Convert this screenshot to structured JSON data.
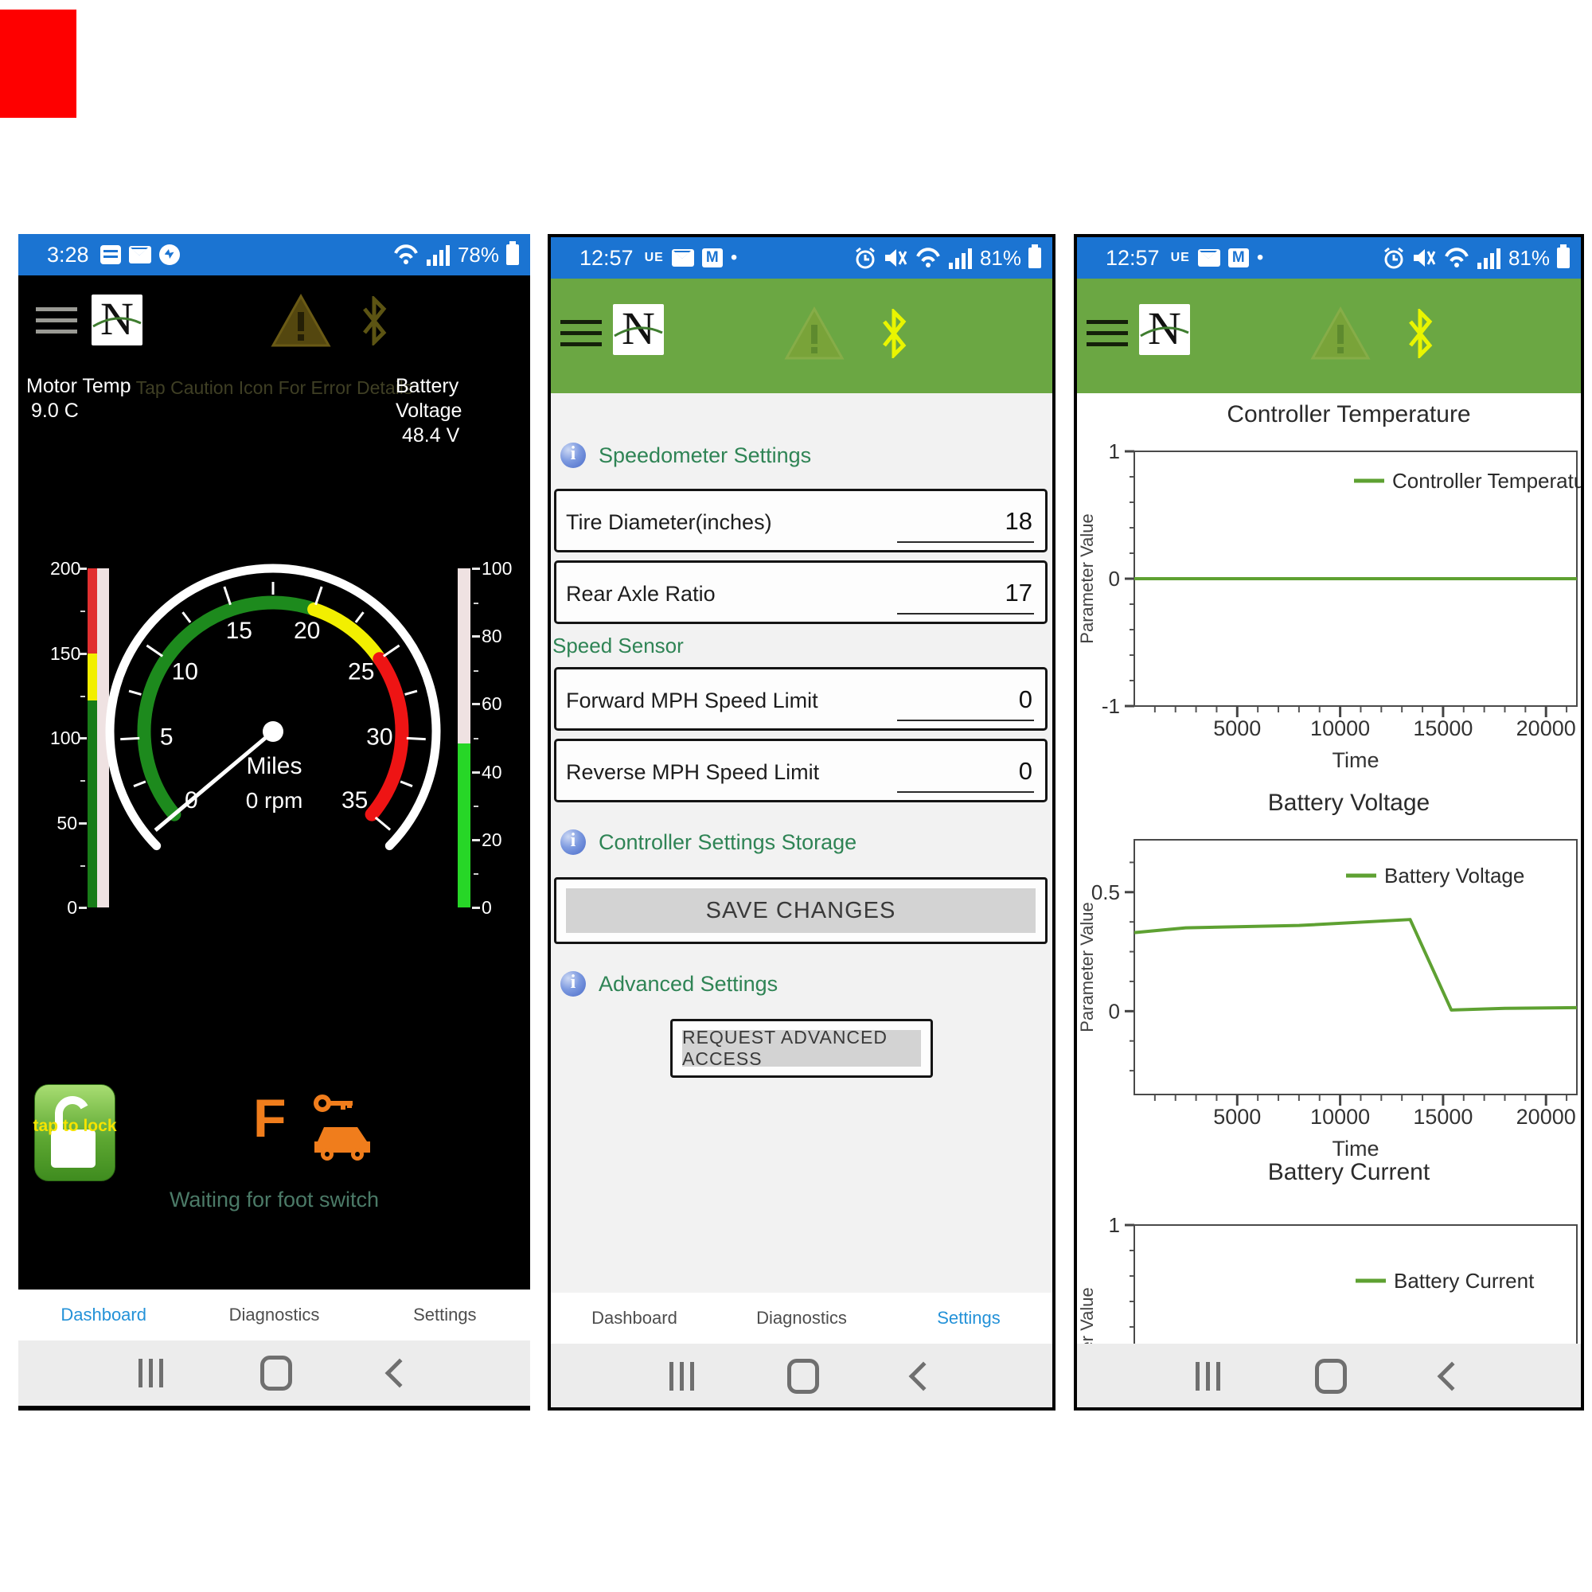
{
  "brand": {
    "logo_letter": "N"
  },
  "phone1": {
    "status_bar": {
      "time": "3:28",
      "battery_pct": "78%"
    },
    "readouts": {
      "motor_temp_label": "Motor Temp",
      "motor_temp_value": "9.0 C",
      "caution_hint": "Tap Caution Icon For Error Details",
      "battery_label": "Battery Voltage",
      "battery_value": "48.4 V"
    },
    "gauge": {
      "min": 0,
      "max": 35,
      "label_step": 5,
      "tick_step": 2.5,
      "needle_value": 0,
      "center_label": "Miles",
      "rpm_text": "0 rpm",
      "zones": [
        {
          "from": 0,
          "to": 20,
          "color": "#1d8a1d"
        },
        {
          "from": 20,
          "to": 25,
          "color": "#f2ef00"
        },
        {
          "from": 25,
          "to": 35,
          "color": "#ee1414"
        }
      ]
    },
    "left_bar": {
      "min": 0,
      "max": 200,
      "labels": [
        200,
        150,
        100,
        50,
        0
      ],
      "minor_step": 25,
      "track_color": "#efe2e2",
      "zones": [
        {
          "from": 150,
          "to": 200,
          "color": "#e12f2f"
        },
        {
          "from": 122,
          "to": 150,
          "color": "#f2ef00"
        },
        {
          "from": 0,
          "to": 122,
          "color": "#187c18"
        }
      ]
    },
    "right_bar": {
      "min": 0,
      "max": 100,
      "labels": [
        100,
        80,
        60,
        40,
        20,
        0
      ],
      "minor_step": 10,
      "value": 48.4,
      "fill_color": "#27d627",
      "track_color": "#efe2e2"
    },
    "lock_button_text": "tap to lock",
    "gear_indicator": "F",
    "status_message": "Waiting for foot switch",
    "nav": [
      {
        "label": "Dashboard",
        "active": true
      },
      {
        "label": "Diagnostics",
        "active": false
      },
      {
        "label": "Settings",
        "active": false
      }
    ]
  },
  "phone2": {
    "status_bar": {
      "time": "12:57",
      "carrier": "UE",
      "gmail_letter": "M",
      "dot": "•",
      "battery_pct": "81%"
    },
    "sections": {
      "speedometer": "Speedometer Settings",
      "speed_sensor": "Speed Sensor",
      "storage": "Controller Settings Storage",
      "advanced": "Advanced Settings"
    },
    "fields": [
      {
        "label": "Tire Diameter(inches)",
        "value": "18"
      },
      {
        "label": "Rear Axle Ratio",
        "value": "17"
      },
      {
        "label": "Forward MPH Speed Limit",
        "value": "0"
      },
      {
        "label": "Reverse MPH Speed Limit",
        "value": "0"
      }
    ],
    "buttons": {
      "save": "SAVE CHANGES",
      "request": "REQUEST ADVANCED ACCESS"
    },
    "nav": [
      {
        "label": "Dashboard",
        "active": false
      },
      {
        "label": "Diagnostics",
        "active": false
      },
      {
        "label": "Settings",
        "active": true
      }
    ]
  },
  "phone3": {
    "status_bar": {
      "time": "12:57",
      "carrier": "UE",
      "gmail_letter": "M",
      "dot": "•",
      "battery_pct": "81%"
    }
  },
  "chart_data": [
    {
      "type": "line",
      "title": "Controller Temperature",
      "xlabel": "Time",
      "ylabel": "Parameter Value",
      "xlim": [
        0,
        21500
      ],
      "ylim": [
        -1,
        1
      ],
      "x_ticks": [
        5000,
        10000,
        15000,
        20000
      ],
      "y_ticks": [
        1,
        0,
        -1
      ],
      "grid": false,
      "legend": [
        "Controller Temperature"
      ],
      "legend_position": "top-right",
      "series": [
        {
          "name": "Controller Temperature",
          "color": "#5ea132",
          "x": [
            0,
            21500
          ],
          "y": [
            0,
            0
          ]
        }
      ]
    },
    {
      "type": "line",
      "title": "Battery Voltage",
      "xlabel": "Time",
      "ylabel": "Parameter Value",
      "xlim": [
        0,
        21500
      ],
      "ylim": [
        -0.35,
        0.72
      ],
      "x_ticks": [
        5000,
        10000,
        15000,
        20000
      ],
      "y_ticks": [
        0.5,
        0
      ],
      "grid": false,
      "legend": [
        "Battery Voltage"
      ],
      "legend_position": "top-right",
      "series": [
        {
          "name": "Battery Voltage",
          "color": "#5ea132",
          "x": [
            0,
            2500,
            8000,
            13400,
            15400,
            18000,
            21500
          ],
          "y": [
            0.33,
            0.35,
            0.36,
            0.385,
            0.005,
            0.012,
            0.015
          ]
        }
      ]
    },
    {
      "type": "line",
      "title": "Battery Current",
      "xlabel": "Time",
      "ylabel": "Parameter Value",
      "xlim": [
        0,
        21500
      ],
      "ylim": [
        -1,
        1
      ],
      "x_ticks": [
        5000,
        10000,
        15000,
        20000
      ],
      "y_ticks": [
        1
      ],
      "grid": false,
      "legend": [
        "Battery Current"
      ],
      "legend_position": "top-right",
      "note": "chart bottom clipped by navigation bar",
      "series": [
        {
          "name": "Battery Current",
          "color": "#5ea132",
          "x": [],
          "y": []
        }
      ]
    }
  ]
}
